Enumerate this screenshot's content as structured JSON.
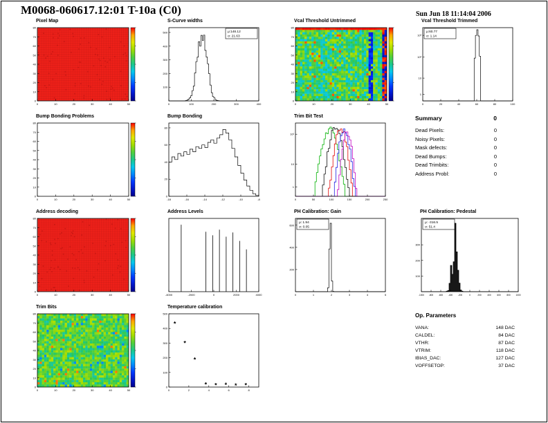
{
  "header": {
    "title": "M0068-060617.12:01 T-10a (C0)",
    "date": "Sun Jun 18 11:14:04 2006"
  },
  "summary": {
    "title": "Summary",
    "total": "0",
    "rows": [
      {
        "label": "Dead Pixels:",
        "value": "0"
      },
      {
        "label": "Noisy Pixels:",
        "value": "0"
      },
      {
        "label": "Mask defects:",
        "value": "0"
      },
      {
        "label": "Dead Bumps:",
        "value": "0"
      },
      {
        "label": "Dead Trimbits:",
        "value": "0"
      },
      {
        "label": "Address Probl:",
        "value": "0"
      }
    ]
  },
  "op_parameters": {
    "title": "Op. Parameters",
    "rows": [
      {
        "label": "VANA:",
        "value": "148 DAC"
      },
      {
        "label": "CALDEL:",
        "value": "84 DAC"
      },
      {
        "label": "VTHR:",
        "value": "87 DAC"
      },
      {
        "label": "VTRIM:",
        "value": "118 DAC"
      },
      {
        "label": "IBIAS_DAC:",
        "value": "127 DAC"
      },
      {
        "label": "VOFFSETOP:",
        "value": "37 DAC"
      }
    ]
  },
  "chart_data": [
    {
      "title": "Pixel Map",
      "type": "heatmap",
      "style": "red",
      "fill_color": "#ee2019",
      "x_range": [
        0,
        50
      ],
      "y_range": [
        0,
        80
      ],
      "x_ticks": [
        0,
        10,
        20,
        30,
        40,
        50
      ],
      "y_ticks": [
        0,
        10,
        20,
        30,
        40,
        50,
        60,
        70,
        80
      ],
      "colorbar": true
    },
    {
      "title": "S-Curve widths",
      "type": "hist",
      "x_range": [
        0,
        400
      ],
      "x_ticks": [
        0,
        100,
        200,
        300,
        400
      ],
      "mu": 148.12,
      "sigma": 21.63,
      "peak_count": 500,
      "y_ticks": [
        100,
        200,
        300,
        400,
        500
      ],
      "stat_lines": [
        "μ:148.12",
        "σ: 21.63"
      ],
      "stat_pos": "tr"
    },
    {
      "title": "Vcal Threshold Untrimmed",
      "type": "heatmap",
      "style": "noisy",
      "x_range": [
        0,
        50
      ],
      "y_range": [
        0,
        80
      ],
      "x_ticks": [
        0,
        10,
        20,
        30,
        40,
        50
      ],
      "y_ticks": [
        0,
        10,
        20,
        30,
        40,
        50,
        60,
        70,
        80
      ],
      "colorbar": true
    },
    {
      "title": "Vcal Threshold Trimmed",
      "type": "hist",
      "x_range": [
        0,
        100
      ],
      "x_ticks": [
        0,
        20,
        40,
        60,
        80,
        100
      ],
      "mu": 60.77,
      "sigma": 1.14,
      "peak_count": 2000,
      "ylog": true,
      "y_ticks": [
        "1",
        "10",
        "10²",
        "10³"
      ],
      "stat_lines": [
        "μ:60.77",
        "σ: 1.14"
      ],
      "stat_pos": "tl"
    },
    {
      "title": "Bump Bonding Problems",
      "type": "heatmap",
      "style": "empty",
      "x_range": [
        0,
        50
      ],
      "y_range": [
        0,
        80
      ],
      "x_ticks": [
        0,
        10,
        20,
        30,
        40,
        50
      ],
      "y_ticks": [
        0,
        10,
        20,
        30,
        40,
        50,
        60,
        70,
        80
      ],
      "colorbar": true
    },
    {
      "title": "Bump Bonding",
      "type": "hist",
      "x_range": [
        -18,
        -8
      ],
      "x_ticks": [
        -18,
        -16,
        -14,
        -12,
        -10,
        -8
      ],
      "bins": [
        40,
        46,
        43,
        50,
        47,
        52,
        49,
        55,
        52,
        58,
        56,
        60,
        57,
        63,
        66,
        62,
        68,
        72,
        78,
        74,
        66,
        56,
        46,
        36,
        27,
        19,
        12,
        7,
        3,
        1
      ],
      "y_ticks": [
        0,
        20,
        40,
        60,
        80
      ]
    },
    {
      "title": "Trim Bit Test",
      "type": "multihist",
      "x_range": [
        0,
        250
      ],
      "x_ticks": [
        0,
        50,
        100,
        150,
        200,
        250
      ],
      "ylog": true,
      "y_ticks": [
        "1",
        "10",
        "10²"
      ],
      "series": [
        {
          "color": "#00b000",
          "mu": 95,
          "sigma": 13,
          "peak": 150
        },
        {
          "color": "#101010",
          "mu": 112,
          "sigma": 11,
          "peak": 180
        },
        {
          "color": "#e00000",
          "mu": 126,
          "sigma": 10,
          "peak": 160
        },
        {
          "color": "#2020e0",
          "mu": 136,
          "sigma": 9,
          "peak": 140
        },
        {
          "color": "#c000c0",
          "mu": 144,
          "sigma": 8,
          "peak": 120
        }
      ]
    },
    {
      "title": "Address decoding",
      "type": "heatmap",
      "style": "red",
      "fill_color": "#ee2019",
      "x_range": [
        0,
        50
      ],
      "y_range": [
        0,
        80
      ],
      "x_ticks": [
        0,
        10,
        20,
        30,
        40,
        50
      ],
      "y_ticks": [
        0,
        10,
        20,
        30,
        40,
        50,
        60,
        70,
        80
      ],
      "colorbar": true
    },
    {
      "title": "Address Levels",
      "type": "spikes",
      "x_range": [
        -4000,
        4000
      ],
      "x_ticks": [
        -4000,
        -2000,
        0,
        2000,
        4000
      ],
      "spikes": [
        {
          "x": -2900,
          "h": 0.95
        },
        {
          "x": -700,
          "h": 0.85
        },
        {
          "x": -100,
          "h": 0.8
        },
        {
          "x": 500,
          "h": 0.88
        },
        {
          "x": 1100,
          "h": 0.78
        },
        {
          "x": 1700,
          "h": 0.84
        },
        {
          "x": 2300,
          "h": 0.72
        },
        {
          "x": 2900,
          "h": 0.6
        }
      ]
    },
    {
      "title": "PH Calibration: Gain",
      "type": "hist",
      "x_range": [
        0,
        5
      ],
      "x_ticks": [
        0,
        1,
        2,
        3,
        4,
        5
      ],
      "mu": 1.94,
      "sigma": 0.05,
      "peak_count": 600,
      "y_ticks": [
        200,
        400,
        600
      ],
      "stat_lines": [
        "μ: 1.94",
        "σ: 0.05"
      ],
      "stat_pos": "tl"
    },
    {
      "title": "PH Calibration: Pedestal",
      "type": "hist",
      "x_range": [
        -1000,
        1000
      ],
      "x_ticks": [
        -1000,
        -800,
        -600,
        -400,
        -200,
        0,
        200,
        400,
        600,
        800,
        1000
      ],
      "xtf": 3.2,
      "mu": -316.5,
      "sigma": 51.4,
      "peak_count": 300,
      "fill": "#181818",
      "noise": 0.6,
      "y_ticks": [
        100,
        200,
        300
      ],
      "stat_lines": [
        "μ: -316.5",
        "σ: 51.4"
      ],
      "stat_pos": "tl"
    },
    {
      "title": "Trim Bits",
      "type": "heatmap",
      "style": "noisy2",
      "x_range": [
        0,
        50
      ],
      "y_range": [
        0,
        80
      ],
      "x_ticks": [
        0,
        10,
        20,
        30,
        40,
        50
      ],
      "y_ticks": [
        0,
        10,
        20,
        30,
        40,
        50,
        60,
        70,
        80
      ],
      "colorbar": true
    },
    {
      "title": "Temperature calibration",
      "type": "scatter",
      "marker": "*",
      "x_range": [
        0,
        9
      ],
      "y_range": [
        0,
        500
      ],
      "x_ticks": [
        0,
        2,
        4,
        6,
        8
      ],
      "y_ticks": [
        0,
        100,
        200,
        300,
        400,
        500
      ],
      "points": [
        [
          0.6,
          440
        ],
        [
          1.6,
          305
        ],
        [
          2.6,
          190
        ],
        [
          3.7,
          18
        ],
        [
          4.7,
          12
        ],
        [
          5.7,
          14
        ],
        [
          6.7,
          10
        ],
        [
          7.7,
          12
        ]
      ]
    }
  ]
}
